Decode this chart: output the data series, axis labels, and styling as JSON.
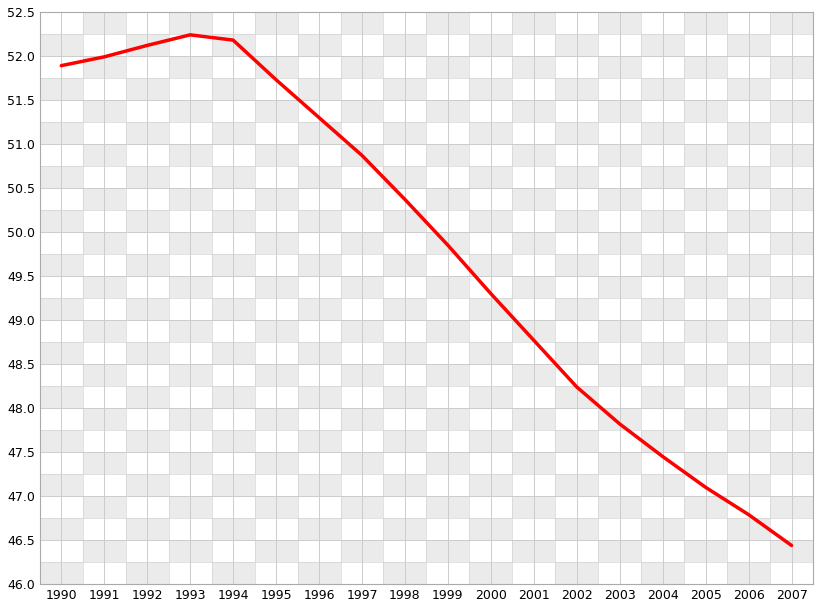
{
  "years": [
    1990,
    1991,
    1992,
    1993,
    1994,
    1995,
    1996,
    1997,
    1998,
    1999,
    2000,
    2001,
    2002,
    2003,
    2004,
    2005,
    2006,
    2007
  ],
  "population": [
    51.89,
    51.99,
    52.12,
    52.24,
    52.18,
    51.73,
    51.3,
    50.87,
    50.37,
    49.85,
    49.3,
    48.77,
    48.24,
    47.82,
    47.45,
    47.1,
    46.79,
    46.44
  ],
  "line_color": "#ff0000",
  "line_width": 2.5,
  "background_color": "#ffffff",
  "checker_light": "#ebebeb",
  "checker_white": "#ffffff",
  "grid_color": "#cccccc",
  "ylim": [
    46.0,
    52.5
  ],
  "ytick_step": 0.5,
  "xlabel": "",
  "ylabel": ""
}
